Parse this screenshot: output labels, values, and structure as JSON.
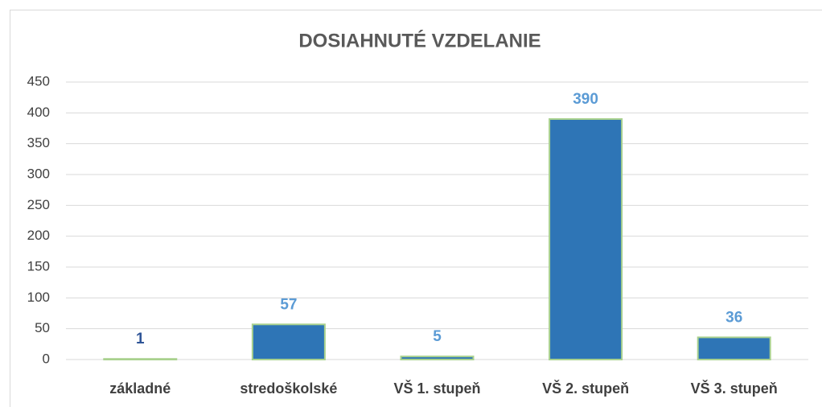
{
  "chart_data": {
    "type": "bar",
    "title": "DOSIAHNUTÉ VZDELANIE",
    "categories": [
      "základné",
      "stredoškolské",
      "VŠ 1. stupeň",
      "VŠ 2. stupeň",
      "VŠ 3. stupeň"
    ],
    "values": [
      1,
      57,
      5,
      390,
      36
    ],
    "color": "#2e75b6",
    "edge_color": "#a9d18e",
    "value_label_colors": [
      "#2f5597",
      "#5b9bd5",
      "#5b9bd5",
      "#5b9bd5",
      "#5b9bd5"
    ],
    "ylim": [
      0,
      450
    ],
    "yticks": [
      0,
      50,
      100,
      150,
      200,
      250,
      300,
      350,
      400,
      450
    ],
    "grid": true
  }
}
